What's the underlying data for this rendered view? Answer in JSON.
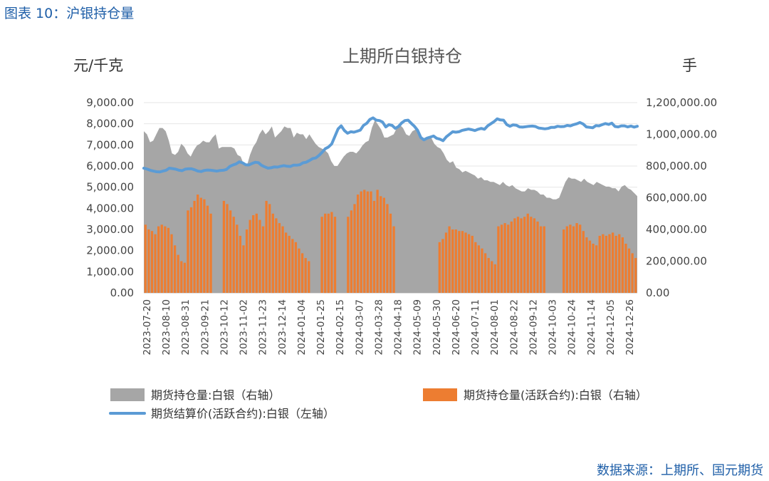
{
  "figure_caption": "图表 10：沪银持仓量",
  "source": "数据来源：上期所、国元期货",
  "colors": {
    "total": "#a6a6a6",
    "active": "#ed7d31",
    "price": "#5b9bd5"
  },
  "chart_data": {
    "type": "bar",
    "title": "上期所白银持仓",
    "left_unit": "元/千克",
    "right_unit": "手",
    "left_axis": {
      "min": 0,
      "max": 9000,
      "ticks": [
        "0.00",
        "1,000.00",
        "2,000.00",
        "3,000.00",
        "4,000.00",
        "5,000.00",
        "6,000.00",
        "7,000.00",
        "8,000.00",
        "9,000.00"
      ]
    },
    "right_axis": {
      "min": 0,
      "max": 1200000,
      "ticks": [
        "0.00",
        "200,000.00",
        "400,000.00",
        "600,000.00",
        "800,000.00",
        "1,000,000.00",
        "1,200,000.00"
      ]
    },
    "x_ticks": [
      "2023-07-20",
      "2023-08-10",
      "2023-08-31",
      "2023-09-21",
      "2023-10-12",
      "2023-11-02",
      "2023-11-23",
      "2023-12-14",
      "2024-01-04",
      "2024-01-25",
      "2024-02-15",
      "2024-03-07",
      "2024-03-28",
      "2024-04-18",
      "2024-05-09",
      "2024-05-30",
      "2024-06-20",
      "2024-07-11",
      "2024-08-01",
      "2024-08-22",
      "2024-09-12",
      "2024-10-03",
      "2024-10-24",
      "2024-11-14",
      "2024-12-05",
      "2024-12-26"
    ],
    "legend": [
      {
        "key": "total",
        "label": "期货持仓量:白银（右轴）"
      },
      {
        "key": "active",
        "label": "期货持仓量(活跃合约):白银（右轴）"
      },
      {
        "key": "price",
        "label": "期货结算价(活跃合约):白银（左轴）"
      }
    ],
    "series_total_right": [
      1020000,
      1000000,
      950000,
      960000,
      1000000,
      1040000,
      1040000,
      1020000,
      960000,
      880000,
      870000,
      890000,
      940000,
      920000,
      880000,
      860000,
      900000,
      930000,
      940000,
      960000,
      950000,
      950000,
      980000,
      1000000,
      910000,
      920000,
      920000,
      920000,
      920000,
      910000,
      870000,
      860000,
      810000,
      800000,
      870000,
      920000,
      950000,
      1000000,
      1030000,
      1000000,
      1020000,
      1050000,
      980000,
      1000000,
      1020000,
      1050000,
      1040000,
      1040000,
      980000,
      1010000,
      1000000,
      1000000,
      970000,
      1000000,
      970000,
      940000,
      920000,
      910000,
      900000,
      880000,
      830000,
      800000,
      800000,
      830000,
      860000,
      880000,
      890000,
      890000,
      880000,
      900000,
      930000,
      950000,
      960000,
      1040000,
      1090000,
      1060000,
      1030000,
      980000,
      980000,
      990000,
      1000000,
      1040000,
      1060000,
      1040000,
      1000000,
      990000,
      1020000,
      1030000,
      1010000,
      980000,
      960000,
      980000,
      980000,
      940000,
      920000,
      910000,
      880000,
      840000,
      820000,
      830000,
      790000,
      780000,
      760000,
      770000,
      760000,
      750000,
      740000,
      720000,
      730000,
      710000,
      710000,
      700000,
      700000,
      690000,
      680000,
      700000,
      680000,
      670000,
      680000,
      660000,
      650000,
      640000,
      640000,
      660000,
      650000,
      650000,
      640000,
      620000,
      620000,
      600000,
      600000,
      590000,
      590000,
      600000,
      650000,
      700000,
      730000,
      720000,
      720000,
      710000,
      700000,
      720000,
      700000,
      690000,
      680000,
      700000,
      690000,
      680000,
      670000,
      670000,
      660000,
      660000,
      640000,
      670000,
      680000,
      660000,
      650000,
      630000,
      610000
    ],
    "series_active_right": [
      430000,
      400000,
      390000,
      370000,
      420000,
      430000,
      420000,
      410000,
      370000,
      300000,
      240000,
      200000,
      190000,
      520000,
      540000,
      580000,
      620000,
      600000,
      590000,
      550000,
      500000,
      0,
      0,
      0,
      580000,
      560000,
      520000,
      480000,
      430000,
      360000,
      300000,
      400000,
      460000,
      490000,
      500000,
      460000,
      420000,
      580000,
      560000,
      500000,
      470000,
      440000,
      420000,
      380000,
      360000,
      340000,
      320000,
      280000,
      250000,
      220000,
      200000,
      0,
      0,
      0,
      480000,
      500000,
      500000,
      510000,
      480000,
      0,
      0,
      0,
      480000,
      520000,
      560000,
      620000,
      640000,
      650000,
      640000,
      640000,
      580000,
      650000,
      610000,
      600000,
      560000,
      500000,
      420000,
      0,
      0,
      0,
      0,
      0,
      0,
      0,
      0,
      0,
      0,
      0,
      0,
      0,
      320000,
      340000,
      380000,
      420000,
      400000,
      400000,
      390000,
      390000,
      380000,
      370000,
      360000,
      320000,
      300000,
      280000,
      250000,
      220000,
      200000,
      180000,
      420000,
      430000,
      440000,
      430000,
      450000,
      470000,
      480000,
      470000,
      480000,
      500000,
      480000,
      470000,
      450000,
      420000,
      420000,
      0,
      0,
      0,
      0,
      0,
      400000,
      420000,
      430000,
      420000,
      440000,
      430000,
      390000,
      350000,
      330000,
      310000,
      300000,
      360000,
      370000,
      360000,
      370000,
      380000,
      360000,
      370000,
      350000,
      310000,
      280000,
      250000,
      220000
    ],
    "series_price_left": [
      5900,
      5860,
      5800,
      5760,
      5730,
      5720,
      5760,
      5800,
      5900,
      5880,
      5850,
      5800,
      5780,
      5850,
      5870,
      5870,
      5820,
      5760,
      5740,
      5790,
      5810,
      5800,
      5780,
      5760,
      5790,
      5800,
      5840,
      5980,
      6050,
      6100,
      6200,
      6150,
      6060,
      6050,
      6120,
      6180,
      6160,
      6030,
      5960,
      5900,
      5920,
      5960,
      5950,
      5990,
      6020,
      5990,
      5980,
      6040,
      6040,
      6060,
      6150,
      6180,
      6260,
      6350,
      6380,
      6500,
      6650,
      6820,
      6900,
      7040,
      7400,
      7750,
      7900,
      7680,
      7550,
      7620,
      7600,
      7650,
      7700,
      7920,
      8020,
      8200,
      8280,
      8170,
      8150,
      8080,
      7850,
      7960,
      7920,
      7780,
      7870,
      8040,
      8150,
      8170,
      8020,
      7880,
      7690,
      7350,
      7240,
      7320,
      7370,
      7420,
      7310,
      7270,
      7200,
      7380,
      7500,
      7620,
      7600,
      7620,
      7690,
      7720,
      7750,
      7720,
      7680,
      7740,
      7780,
      7740,
      7900,
      8000,
      8100,
      8230,
      8180,
      8170,
      7960,
      7880,
      7950,
      7930,
      7850,
      7840,
      7860,
      7880,
      7890,
      7870,
      7800,
      7780,
      7760,
      7780,
      7830,
      7830,
      7880,
      7860,
      7870,
      7920,
      7900,
      7960,
      8000,
      8060,
      7990,
      7850,
      7830,
      7810,
      7910,
      7900,
      7960,
      8010,
      7970,
      8030,
      7870,
      7850,
      7900,
      7900,
      7850,
      7890,
      7840,
      7880
    ]
  }
}
